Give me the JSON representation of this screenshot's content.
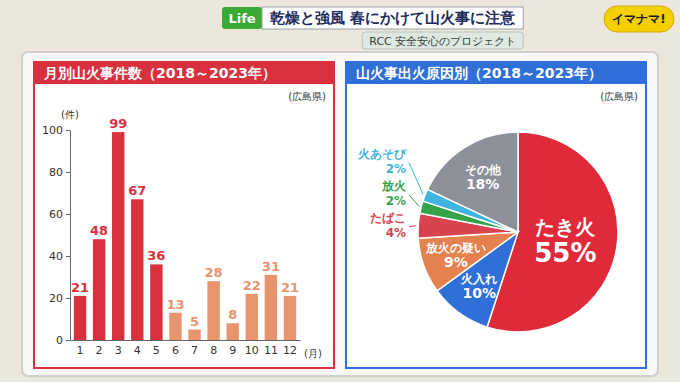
{
  "header": {
    "tag": "Life",
    "title": "乾燥と強風 春にかけて山火事に注意",
    "subtitle": "RCC 安全安心のプロジェクト",
    "logo": "イマナマ!"
  },
  "chart_data": [
    {
      "type": "bar",
      "title": "月別山火事件数（2018～2023年）",
      "annotation": "(広島県)",
      "y_label": "(件)",
      "x_label": "(月)",
      "categories": [
        "1",
        "2",
        "3",
        "4",
        "5",
        "6",
        "7",
        "8",
        "9",
        "10",
        "11",
        "12"
      ],
      "values": [
        21,
        48,
        99,
        67,
        36,
        13,
        5,
        28,
        8,
        22,
        31,
        21
      ],
      "colors": [
        "#d9303e",
        "#d9303e",
        "#d9303e",
        "#d9303e",
        "#d9303e",
        "#e8946c",
        "#e8946c",
        "#e8946c",
        "#e8946c",
        "#e8946c",
        "#e8946c",
        "#e8946c"
      ],
      "ylim": [
        0,
        100
      ],
      "yticks": [
        0,
        20,
        40,
        60,
        80,
        100
      ],
      "grid": false,
      "data_labels": true
    },
    {
      "type": "pie",
      "title": "山火事出火原因別（2018～2023年）",
      "annotation": "(広島県)",
      "categories": [
        "たき火",
        "火入れ",
        "放火の疑い",
        "たばこ",
        "放火",
        "火あそび",
        "その他"
      ],
      "values": [
        55,
        10,
        9,
        4,
        2,
        2,
        18
      ],
      "value_labels": [
        "55%",
        "10%",
        "9%",
        "4%",
        "2%",
        "2%",
        "18%"
      ],
      "colors": [
        "#e02a3a",
        "#2f6fd8",
        "#e5804f",
        "#d8434e",
        "#34a34a",
        "#3fb4e0",
        "#8c9099"
      ],
      "data_labels": true
    }
  ]
}
